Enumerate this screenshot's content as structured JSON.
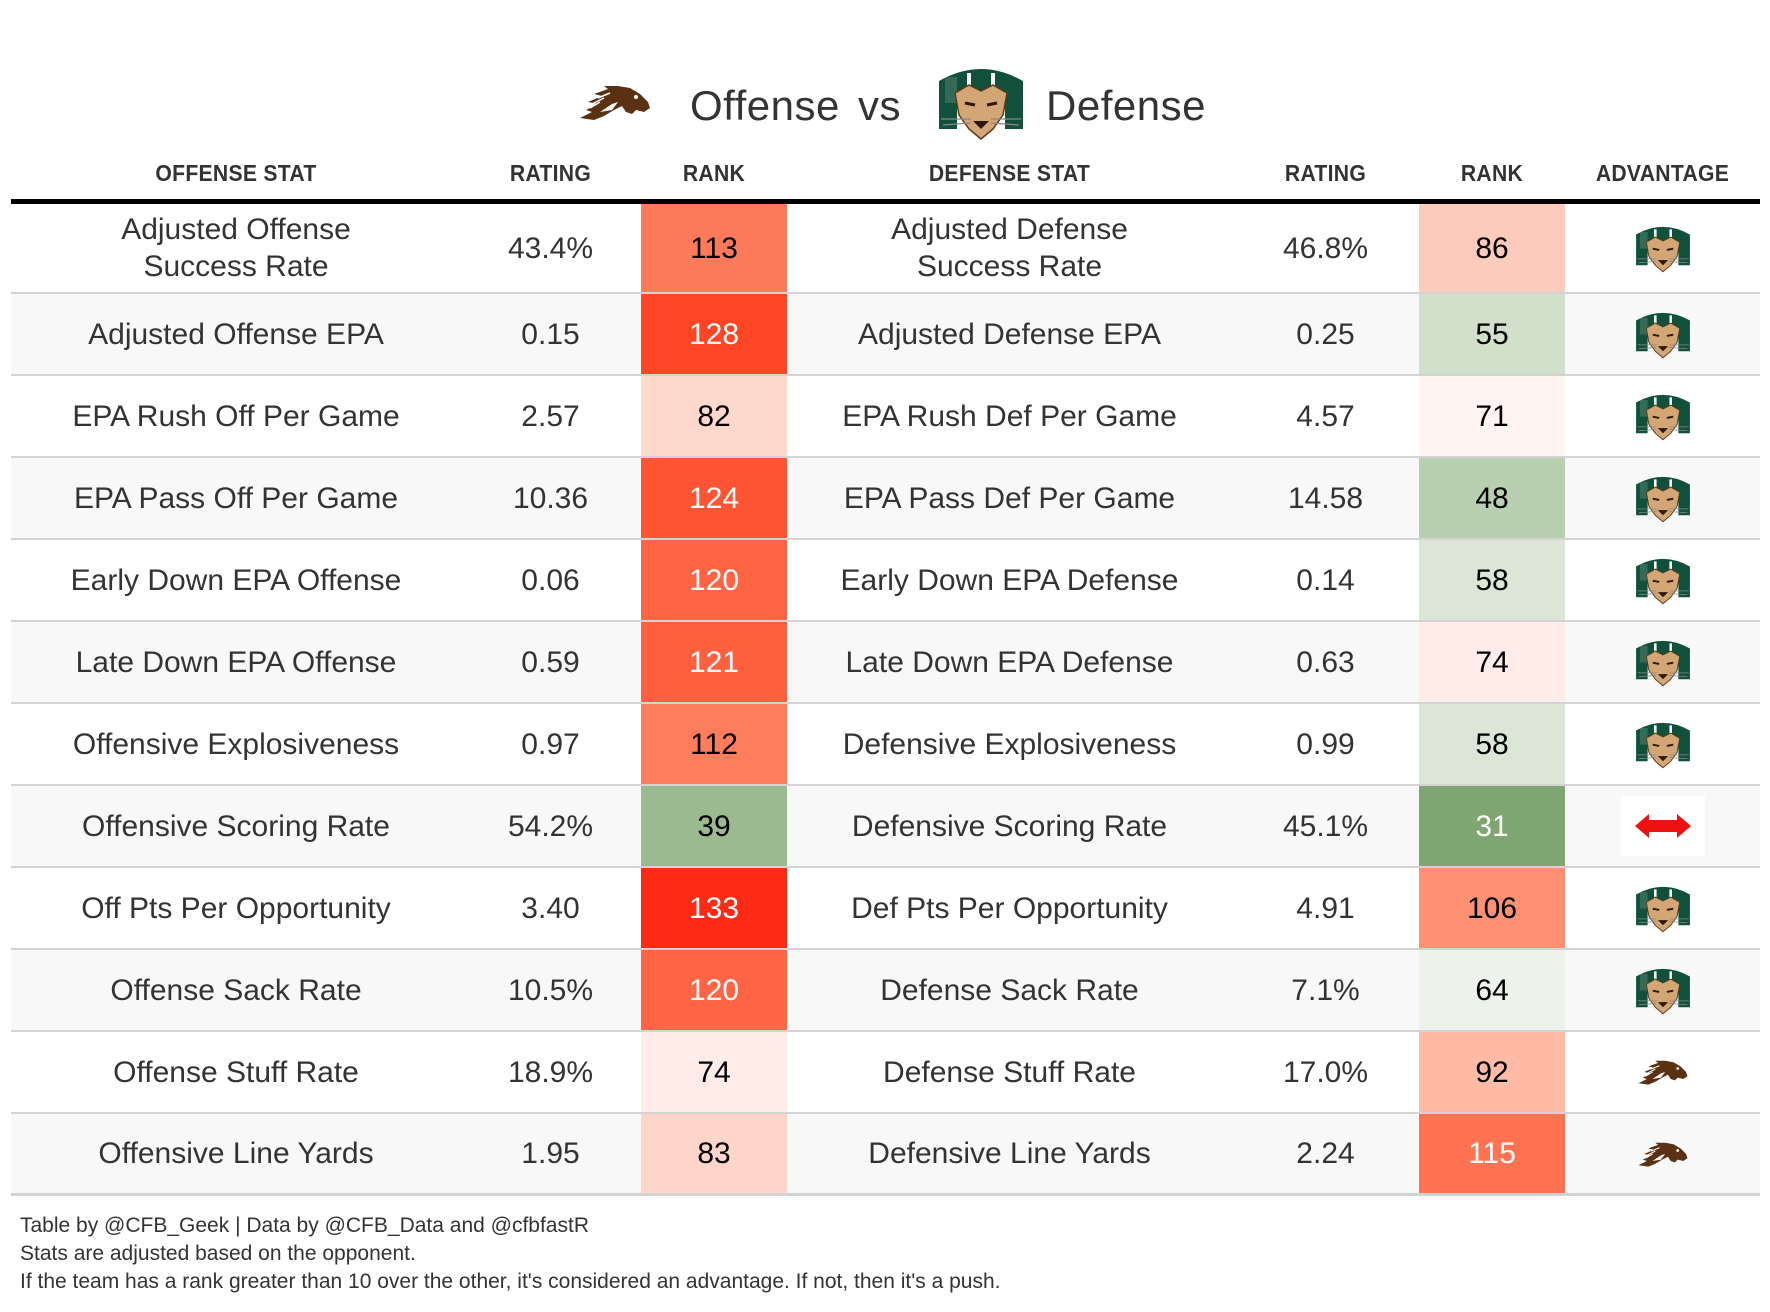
{
  "title": {
    "offense_team_logo": "western-michigan-bronco-logo",
    "offense_label": "Offense",
    "vs_label": "vs",
    "defense_team_logo": "ohio-bobcat-logo",
    "defense_label": "Defense"
  },
  "headers": {
    "offense_stat": "OFFENSE STAT",
    "offense_rating": "RATING",
    "offense_rank": "RANK",
    "defense_stat": "DEFENSE STAT",
    "defense_rating": "RATING",
    "defense_rank": "RANK",
    "advantage": "ADVANTAGE"
  },
  "colors": {
    "offense_team": "#5a3213",
    "defense_team": "#00694e",
    "push_arrow": "#ee1111"
  },
  "rows": [
    {
      "offense_stat": "Adjusted Offense Success Rate",
      "offense_rating": "43.4%",
      "offense_rank": "113",
      "offense_rank_color": "#ff7a5a",
      "offense_rank_text_light": false,
      "defense_stat": "Adjusted Defense Success Rate",
      "defense_rating": "46.8%",
      "defense_rank": "86",
      "defense_rank_color": "#fccbbb",
      "defense_rank_text_light": false,
      "advantage": "defense"
    },
    {
      "offense_stat": "Adjusted Offense EPA",
      "offense_rating": "0.15",
      "offense_rank": "128",
      "offense_rank_color": "#ff4524",
      "offense_rank_text_light": true,
      "defense_stat": "Adjusted Defense EPA",
      "defense_rating": "0.25",
      "defense_rank": "55",
      "defense_rank_color": "#d1e0cb",
      "defense_rank_text_light": false,
      "advantage": "defense"
    },
    {
      "offense_stat": "EPA Rush Off Per Game",
      "offense_rating": "2.57",
      "offense_rank": "82",
      "offense_rank_color": "#ffd8cc",
      "offense_rank_text_light": false,
      "defense_stat": "EPA Rush Def Per Game",
      "defense_rating": "4.57",
      "defense_rank": "71",
      "defense_rank_color": "#fff4f1",
      "defense_rank_text_light": false,
      "advantage": "defense"
    },
    {
      "offense_stat": "EPA Pass Off Per Game",
      "offense_rating": "10.36",
      "offense_rank": "124",
      "offense_rank_color": "#ff5535",
      "offense_rank_text_light": true,
      "defense_stat": "EPA Pass Def Per Game",
      "defense_rating": "14.58",
      "defense_rank": "48",
      "defense_rank_color": "#b9d0b0",
      "defense_rank_text_light": false,
      "advantage": "defense"
    },
    {
      "offense_stat": "Early Down EPA Offense",
      "offense_rating": "0.06",
      "offense_rank": "120",
      "offense_rank_color": "#ff6444",
      "offense_rank_text_light": true,
      "defense_stat": "Early Down EPA Defense",
      "defense_rating": "0.14",
      "defense_rank": "58",
      "defense_rank_color": "#dbe6d6",
      "defense_rank_text_light": false,
      "advantage": "defense"
    },
    {
      "offense_stat": "Late Down EPA Offense",
      "offense_rating": "0.59",
      "offense_rank": "121",
      "offense_rank_color": "#ff6040",
      "offense_rank_text_light": true,
      "defense_stat": "Late Down EPA Defense",
      "defense_rating": "0.63",
      "defense_rank": "74",
      "defense_rank_color": "#ffece8",
      "defense_rank_text_light": false,
      "advantage": "defense"
    },
    {
      "offense_stat": "Offensive Explosiveness",
      "offense_rating": "0.97",
      "offense_rank": "112",
      "offense_rank_color": "#ff7d5d",
      "offense_rank_text_light": false,
      "defense_stat": "Defensive Explosiveness",
      "defense_rating": "0.99",
      "defense_rank": "58",
      "defense_rank_color": "#dbe6d6",
      "defense_rank_text_light": false,
      "advantage": "defense"
    },
    {
      "offense_stat": "Offensive Scoring Rate",
      "offense_rating": "54.2%",
      "offense_rank": "39",
      "offense_rank_color": "#9bba8f",
      "offense_rank_text_light": false,
      "defense_stat": "Defensive Scoring Rate",
      "defense_rating": "45.1%",
      "defense_rank": "31",
      "defense_rank_color": "#7fa672",
      "defense_rank_text_light": true,
      "advantage": "push"
    },
    {
      "offense_stat": "Off Pts Per Opportunity",
      "offense_rating": "3.40",
      "offense_rank": "133",
      "offense_rank_color": "#ff2a14",
      "offense_rank_text_light": true,
      "defense_stat": "Def Pts Per Opportunity",
      "defense_rating": "4.91",
      "defense_rank": "106",
      "defense_rank_color": "#ff9173",
      "defense_rank_text_light": false,
      "advantage": "defense"
    },
    {
      "offense_stat": "Offense Sack Rate",
      "offense_rating": "10.5%",
      "offense_rank": "120",
      "offense_rank_color": "#ff6444",
      "offense_rank_text_light": true,
      "defense_stat": "Defense Sack Rate",
      "defense_rating": "7.1%",
      "defense_rank": "64",
      "defense_rank_color": "#edf2eb",
      "defense_rank_text_light": false,
      "advantage": "defense"
    },
    {
      "offense_stat": "Offense Stuff Rate",
      "offense_rating": "18.9%",
      "offense_rank": "74",
      "offense_rank_color": "#ffece8",
      "offense_rank_text_light": false,
      "defense_stat": "Defense Stuff Rate",
      "defense_rating": "17.0%",
      "defense_rank": "92",
      "defense_rank_color": "#ffbba5",
      "defense_rank_text_light": false,
      "advantage": "offense"
    },
    {
      "offense_stat": "Offensive Line Yards",
      "offense_rating": "1.95",
      "offense_rank": "83",
      "offense_rank_color": "#ffd5c9",
      "offense_rank_text_light": false,
      "defense_stat": "Defensive Line Yards",
      "defense_rating": "2.24",
      "defense_rank": "115",
      "defense_rank_color": "#ff7352",
      "defense_rank_text_light": true,
      "advantage": "offense"
    }
  ],
  "footer": {
    "line1": "Table by @CFB_Geek | Data by @CFB_Data and @cfbfastR",
    "line2": "Stats are adjusted based on the opponent.",
    "line3": "If the team has a rank greater than 10 over the other, it's considered an advantage. If not, then it's a push."
  }
}
